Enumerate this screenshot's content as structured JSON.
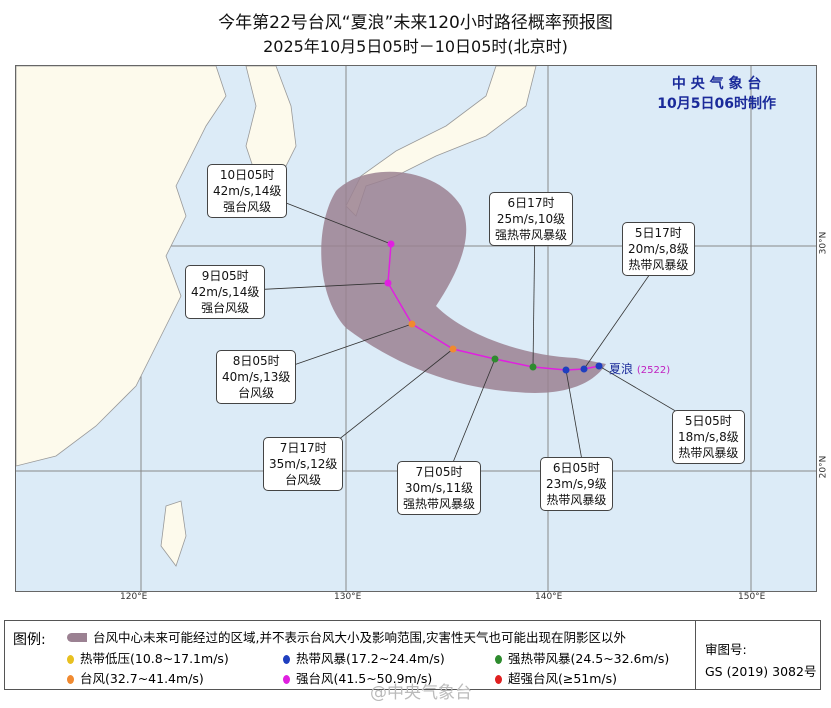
{
  "title": "今年第22号台风“夏浪”未来120小时路径概率预报图",
  "subtitle": "2025年10月5日05时－10日05时(北京时)",
  "org": {
    "name": "中 央 气 象 台",
    "made": "10月5日06时制作"
  },
  "typhoon": {
    "name": "夏浪",
    "code": "(2522)"
  },
  "axes": {
    "lon": [
      "120°E",
      "130°E",
      "140°E",
      "150°E"
    ],
    "lat": [
      "30°N",
      "20°N"
    ]
  },
  "points": [
    {
      "time": "5日05时",
      "wind": "18m/s,8级",
      "level": "热带风暴级",
      "color": "#1f3fbf"
    },
    {
      "time": "5日17时",
      "wind": "20m/s,8级",
      "level": "热带风暴级",
      "color": "#1f3fbf"
    },
    {
      "time": "6日05时",
      "wind": "23m/s,9级",
      "level": "热带风暴级",
      "color": "#1f3fbf"
    },
    {
      "time": "6日17时",
      "wind": "25m/s,10级",
      "level": "强热带风暴级",
      "color": "#2e8b2e"
    },
    {
      "time": "7日05时",
      "wind": "30m/s,11级",
      "level": "强热带风暴级",
      "color": "#2e8b2e"
    },
    {
      "time": "7日17时",
      "wind": "35m/s,12级",
      "level": "台风级",
      "color": "#f08a30"
    },
    {
      "time": "8日05时",
      "wind": "40m/s,13级",
      "level": "台风级",
      "color": "#f08a30"
    },
    {
      "time": "9日05时",
      "wind": "42m/s,14级",
      "level": "强台风级",
      "color": "#e020e0"
    },
    {
      "time": "10日05时",
      "wind": "42m/s,14级",
      "level": "强台风级",
      "color": "#e020e0"
    }
  ],
  "legend": {
    "title": "图例:",
    "cone": "台风中心未来可能经过的区域,并不表示台风大小及影响范围,灾害性天气也可能出现在阴影区以外",
    "items": [
      {
        "label": "热带低压(10.8~17.1m/s)",
        "color": "#e8c020"
      },
      {
        "label": "热带风暴(17.2~24.4m/s)",
        "color": "#1f3fbf"
      },
      {
        "label": "强热带风暴(24.5~32.6m/s)",
        "color": "#2e8b2e"
      },
      {
        "label": "台风(32.7~41.4m/s)",
        "color": "#f08a30"
      },
      {
        "label": "强台风(41.5~50.9m/s)",
        "color": "#e020e0"
      },
      {
        "label": "超强台风(≥51m/s)",
        "color": "#e02020"
      }
    ],
    "review_label": "审图号:",
    "review_no": "GS (2019) 3082号"
  },
  "watermark": "@中央气象台"
}
